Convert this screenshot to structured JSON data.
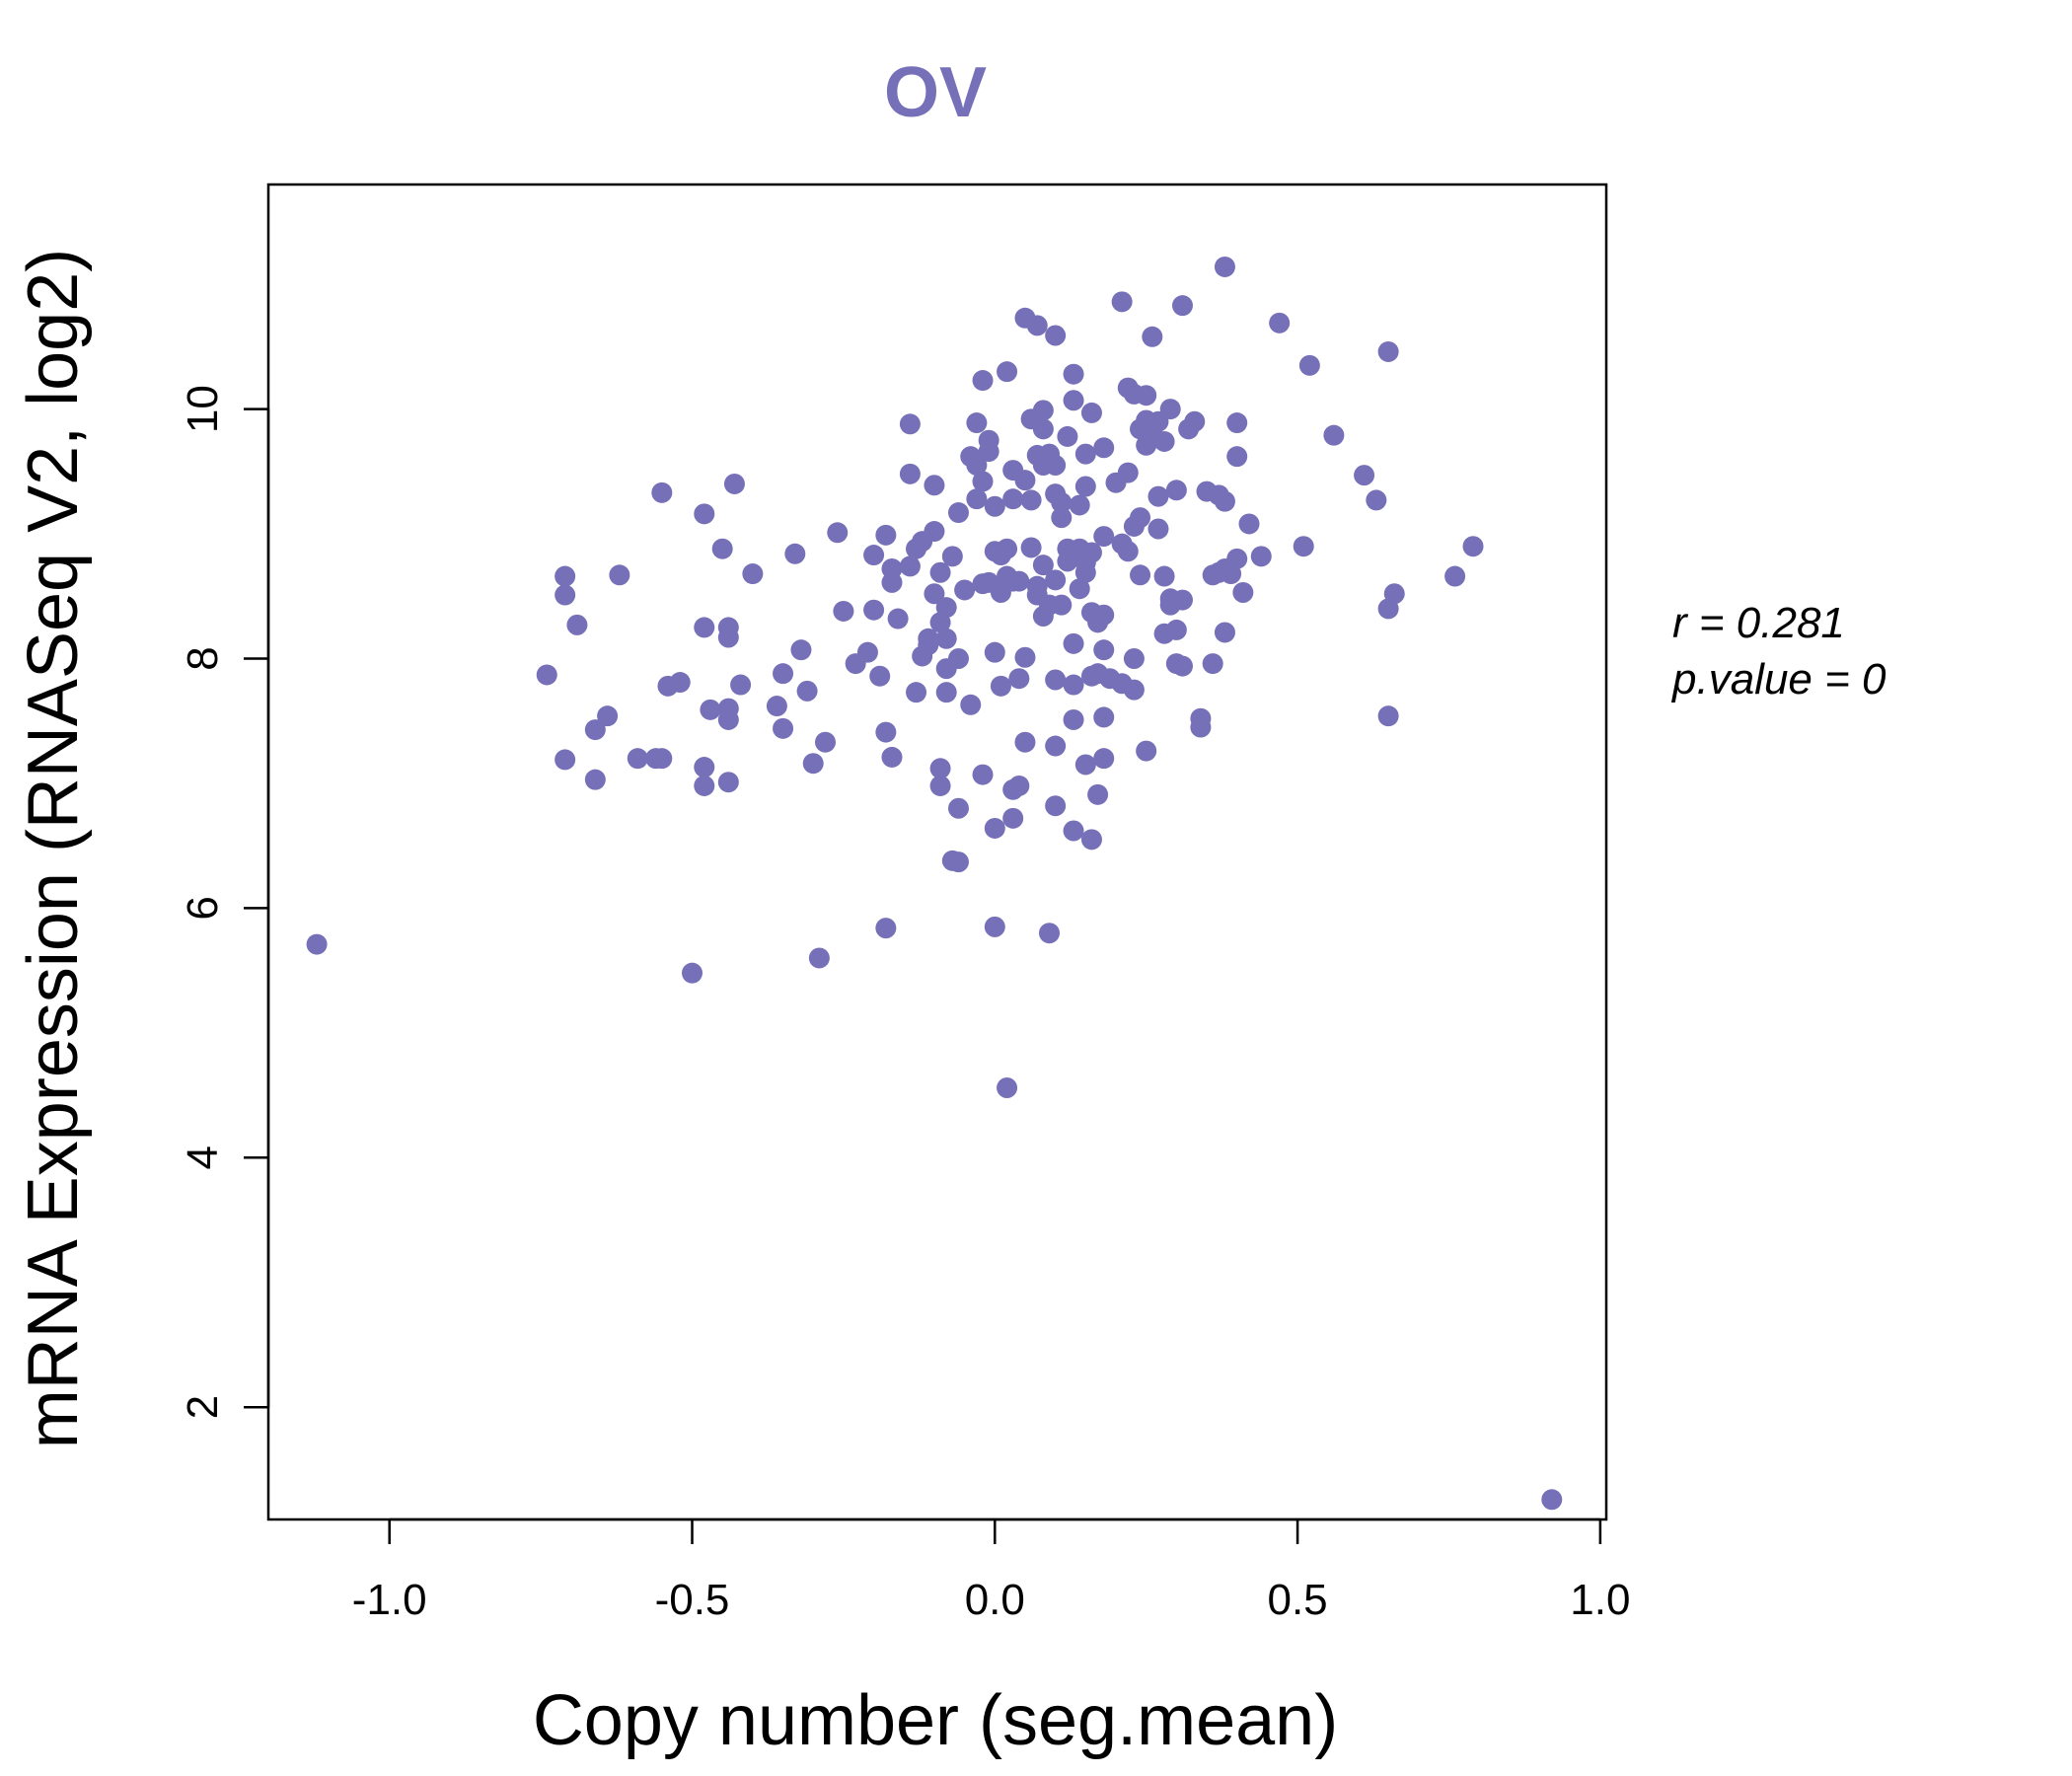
{
  "chart_data": {
    "type": "scatter",
    "title": "OV",
    "xlabel": "Copy number (seg.mean)",
    "ylabel": "mRNA Expression (RNASeq V2, log2)",
    "xlim": [
      -1.2,
      1.01
    ],
    "ylim": [
      1.1,
      11.8
    ],
    "x_ticks": [
      -1.0,
      -0.5,
      0.0,
      0.5,
      1.0
    ],
    "x_tick_labels": [
      "-1.0",
      "-0.5",
      "0.0",
      "0.5",
      "1.0"
    ],
    "y_ticks": [
      2,
      4,
      6,
      8,
      10
    ],
    "y_tick_labels": [
      "2",
      "4",
      "6",
      "8",
      "10"
    ],
    "grid": false,
    "legend": "none",
    "colors": {
      "points": "#7670B8",
      "title": "#7670B8",
      "axis": "#000000"
    },
    "annotations": {
      "r_label": "r = 0.281",
      "p_label": "p.value = 0"
    },
    "series": [
      {
        "points": [
          [
            -1.12,
            5.71
          ],
          [
            -0.74,
            7.87
          ],
          [
            -0.71,
            8.66
          ],
          [
            -0.71,
            8.51
          ],
          [
            -0.69,
            8.27
          ],
          [
            -0.71,
            7.19
          ],
          [
            -0.66,
            7.03
          ],
          [
            -0.66,
            7.43
          ],
          [
            -0.64,
            7.54
          ],
          [
            -0.62,
            8.67
          ],
          [
            -0.59,
            7.2
          ],
          [
            -0.56,
            7.2
          ],
          [
            -0.55,
            7.2
          ],
          [
            -0.55,
            9.33
          ],
          [
            -0.54,
            7.78
          ],
          [
            -0.52,
            7.81
          ],
          [
            -0.5,
            5.48
          ],
          [
            -0.48,
            9.16
          ],
          [
            -0.48,
            8.25
          ],
          [
            -0.48,
            7.13
          ],
          [
            -0.48,
            6.98
          ],
          [
            -0.47,
            7.59
          ],
          [
            -0.45,
            8.88
          ],
          [
            -0.44,
            7.01
          ],
          [
            -0.44,
            7.6
          ],
          [
            -0.44,
            7.51
          ],
          [
            -0.44,
            8.17
          ],
          [
            -0.44,
            8.25
          ],
          [
            -0.43,
            9.4
          ],
          [
            -0.42,
            7.79
          ],
          [
            -0.4,
            8.68
          ],
          [
            -0.36,
            7.62
          ],
          [
            -0.35,
            7.44
          ],
          [
            -0.35,
            7.88
          ],
          [
            -0.33,
            8.84
          ],
          [
            -0.32,
            8.07
          ],
          [
            -0.31,
            7.74
          ],
          [
            -0.3,
            7.16
          ],
          [
            -0.29,
            5.6
          ],
          [
            -0.28,
            7.33
          ],
          [
            -0.26,
            9.01
          ],
          [
            -0.25,
            8.38
          ],
          [
            -0.23,
            7.96
          ],
          [
            -0.21,
            8.05
          ],
          [
            -0.2,
            8.83
          ],
          [
            -0.2,
            8.39
          ],
          [
            -0.19,
            7.86
          ],
          [
            -0.18,
            7.41
          ],
          [
            -0.18,
            8.99
          ],
          [
            -0.18,
            5.84
          ],
          [
            -0.17,
            7.21
          ],
          [
            -0.17,
            8.61
          ],
          [
            -0.17,
            8.72
          ],
          [
            -0.16,
            8.32
          ],
          [
            -0.14,
            8.74
          ],
          [
            -0.14,
            9.88
          ],
          [
            -0.14,
            9.48
          ],
          [
            -0.13,
            7.73
          ],
          [
            -0.13,
            8.88
          ],
          [
            -0.12,
            8.94
          ],
          [
            -0.12,
            8.02
          ],
          [
            -0.11,
            8.11
          ],
          [
            -0.11,
            8.16
          ],
          [
            -0.1,
            9.39
          ],
          [
            -0.1,
            8.52
          ],
          [
            -0.1,
            9.02
          ],
          [
            -0.09,
            7.12
          ],
          [
            -0.09,
            6.98
          ],
          [
            -0.09,
            8.29
          ],
          [
            -0.09,
            8.69
          ],
          [
            -0.08,
            7.92
          ],
          [
            -0.08,
            8.16
          ],
          [
            -0.08,
            8.41
          ],
          [
            -0.08,
            7.73
          ],
          [
            -0.07,
            8.82
          ],
          [
            -0.07,
            6.38
          ],
          [
            -0.06,
            6.8
          ],
          [
            -0.06,
            6.37
          ],
          [
            -0.06,
            9.17
          ],
          [
            -0.06,
            8.0
          ],
          [
            -0.05,
            8.55
          ],
          [
            -0.04,
            9.62
          ],
          [
            -0.04,
            7.63
          ],
          [
            -0.03,
            9.55
          ],
          [
            -0.03,
            9.89
          ],
          [
            -0.03,
            9.28
          ],
          [
            -0.02,
            10.23
          ],
          [
            -0.02,
            9.42
          ],
          [
            -0.02,
            8.6
          ],
          [
            -0.02,
            7.07
          ],
          [
            -0.01,
            8.61
          ],
          [
            -0.01,
            9.75
          ],
          [
            -0.01,
            9.66
          ],
          [
            0.0,
            5.85
          ],
          [
            0.0,
            6.64
          ],
          [
            0.0,
            8.05
          ],
          [
            0.0,
            8.86
          ],
          [
            0.0,
            9.22
          ],
          [
            0.01,
            8.83
          ],
          [
            0.01,
            8.53
          ],
          [
            0.01,
            7.78
          ],
          [
            0.02,
            4.56
          ],
          [
            0.02,
            10.3
          ],
          [
            0.02,
            8.88
          ],
          [
            0.02,
            8.66
          ],
          [
            0.03,
            6.95
          ],
          [
            0.03,
            6.72
          ],
          [
            0.03,
            9.51
          ],
          [
            0.03,
            9.28
          ],
          [
            0.03,
            8.62
          ],
          [
            0.04,
            7.84
          ],
          [
            0.04,
            8.62
          ],
          [
            0.04,
            6.98
          ],
          [
            0.05,
            10.73
          ],
          [
            0.05,
            9.43
          ],
          [
            0.05,
            8.01
          ],
          [
            0.05,
            7.33
          ],
          [
            0.06,
            9.92
          ],
          [
            0.06,
            9.27
          ],
          [
            0.06,
            8.89
          ],
          [
            0.07,
            10.67
          ],
          [
            0.07,
            9.63
          ],
          [
            0.07,
            8.51
          ],
          [
            0.07,
            8.58
          ],
          [
            0.08,
            9.55
          ],
          [
            0.08,
            9.99
          ],
          [
            0.08,
            9.84
          ],
          [
            0.08,
            8.75
          ],
          [
            0.08,
            8.34
          ],
          [
            0.09,
            5.8
          ],
          [
            0.09,
            9.64
          ],
          [
            0.09,
            8.43
          ],
          [
            0.1,
            10.59
          ],
          [
            0.1,
            9.32
          ],
          [
            0.1,
            9.55
          ],
          [
            0.1,
            8.63
          ],
          [
            0.1,
            7.83
          ],
          [
            0.1,
            7.3
          ],
          [
            0.1,
            6.82
          ],
          [
            0.11,
            9.25
          ],
          [
            0.11,
            8.43
          ],
          [
            0.11,
            9.13
          ],
          [
            0.12,
            9.78
          ],
          [
            0.12,
            8.88
          ],
          [
            0.12,
            8.78
          ],
          [
            0.13,
            10.28
          ],
          [
            0.13,
            10.07
          ],
          [
            0.13,
            8.12
          ],
          [
            0.13,
            6.62
          ],
          [
            0.13,
            7.79
          ],
          [
            0.13,
            7.51
          ],
          [
            0.14,
            9.23
          ],
          [
            0.14,
            8.56
          ],
          [
            0.14,
            8.88
          ],
          [
            0.15,
            9.64
          ],
          [
            0.15,
            9.38
          ],
          [
            0.15,
            7.15
          ],
          [
            0.15,
            8.69
          ],
          [
            0.15,
            8.77
          ],
          [
            0.16,
            9.97
          ],
          [
            0.16,
            8.85
          ],
          [
            0.16,
            6.55
          ],
          [
            0.16,
            7.86
          ],
          [
            0.16,
            8.37
          ],
          [
            0.17,
            6.91
          ],
          [
            0.17,
            7.88
          ],
          [
            0.17,
            8.29
          ],
          [
            0.18,
            8.35
          ],
          [
            0.18,
            9.69
          ],
          [
            0.18,
            8.98
          ],
          [
            0.18,
            8.07
          ],
          [
            0.18,
            7.2
          ],
          [
            0.18,
            7.53
          ],
          [
            0.19,
            7.84
          ],
          [
            0.2,
            9.41
          ],
          [
            0.21,
            7.8
          ],
          [
            0.21,
            8.92
          ],
          [
            0.21,
            10.86
          ],
          [
            0.22,
            10.17
          ],
          [
            0.22,
            9.49
          ],
          [
            0.22,
            8.86
          ],
          [
            0.23,
            10.12
          ],
          [
            0.23,
            9.06
          ],
          [
            0.23,
            7.75
          ],
          [
            0.23,
            8.0
          ],
          [
            0.24,
            9.84
          ],
          [
            0.24,
            8.67
          ],
          [
            0.24,
            9.13
          ],
          [
            0.25,
            10.11
          ],
          [
            0.25,
            9.71
          ],
          [
            0.25,
            9.91
          ],
          [
            0.25,
            7.26
          ],
          [
            0.26,
            10.58
          ],
          [
            0.26,
            9.8
          ],
          [
            0.27,
            9.3
          ],
          [
            0.27,
            9.04
          ],
          [
            0.27,
            9.9
          ],
          [
            0.28,
            9.74
          ],
          [
            0.28,
            8.66
          ],
          [
            0.28,
            8.2
          ],
          [
            0.29,
            10.0
          ],
          [
            0.29,
            8.43
          ],
          [
            0.29,
            8.48
          ],
          [
            0.3,
            9.35
          ],
          [
            0.3,
            8.23
          ],
          [
            0.3,
            7.96
          ],
          [
            0.31,
            10.83
          ],
          [
            0.31,
            8.47
          ],
          [
            0.31,
            7.94
          ],
          [
            0.32,
            9.84
          ],
          [
            0.33,
            9.9
          ],
          [
            0.34,
            7.45
          ],
          [
            0.34,
            7.52
          ],
          [
            0.35,
            9.34
          ],
          [
            0.36,
            8.67
          ],
          [
            0.36,
            7.96
          ],
          [
            0.37,
            9.31
          ],
          [
            0.37,
            8.69
          ],
          [
            0.38,
            9.26
          ],
          [
            0.38,
            8.72
          ],
          [
            0.38,
            8.21
          ],
          [
            0.38,
            11.14
          ],
          [
            0.39,
            8.68
          ],
          [
            0.4,
            9.89
          ],
          [
            0.4,
            9.62
          ],
          [
            0.4,
            8.8
          ],
          [
            0.41,
            8.53
          ],
          [
            0.42,
            9.08
          ],
          [
            0.44,
            8.82
          ],
          [
            0.47,
            10.69
          ],
          [
            0.51,
            8.9
          ],
          [
            0.52,
            10.35
          ],
          [
            0.56,
            9.79
          ],
          [
            0.61,
            9.47
          ],
          [
            0.63,
            9.27
          ],
          [
            0.65,
            8.4
          ],
          [
            0.65,
            7.54
          ],
          [
            0.65,
            10.46
          ],
          [
            0.66,
            8.52
          ],
          [
            0.76,
            8.66
          ],
          [
            0.79,
            8.9
          ],
          [
            0.92,
            1.26
          ]
        ]
      }
    ]
  }
}
